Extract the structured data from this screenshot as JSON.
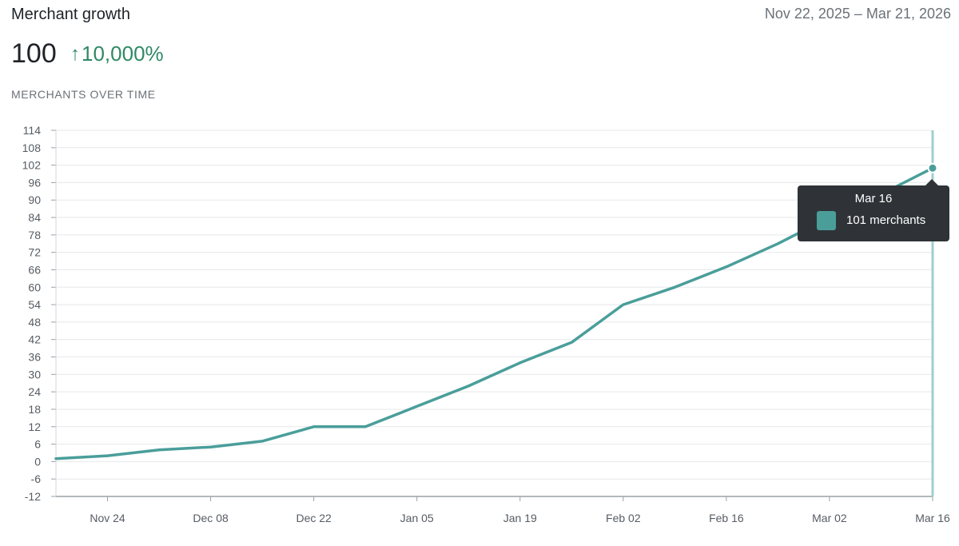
{
  "header": {
    "title": "Merchant growth",
    "date_range": "Nov 22, 2025 – Mar 21, 2026",
    "metric_value": "100",
    "change_arrow": "↑",
    "change_value": "10,000%",
    "chart_subtitle": "MERCHANTS OVER TIME"
  },
  "tooltip": {
    "date": "Mar 16",
    "value_label": "101 merchants",
    "swatch_color": "#4a9e9a"
  },
  "colors": {
    "line": "#4a9e9a",
    "crosshair": "#9fcfcc",
    "grid": "#e6e8ea",
    "positive_change": "#2f8a63"
  },
  "chart_data": {
    "type": "line",
    "title": "MERCHANTS OVER TIME",
    "xlabel": "",
    "ylabel": "",
    "ylim": [
      -12,
      114
    ],
    "yticks": [
      -12,
      -6,
      0,
      6,
      12,
      18,
      24,
      30,
      36,
      42,
      48,
      54,
      60,
      66,
      72,
      78,
      84,
      90,
      96,
      102,
      108,
      114
    ],
    "xlim": [
      "2025-11-17",
      "2026-03-16"
    ],
    "xticks": [
      {
        "date": "2025-11-24",
        "label": "Nov 24"
      },
      {
        "date": "2025-12-08",
        "label": "Dec 08"
      },
      {
        "date": "2025-12-22",
        "label": "Dec 22"
      },
      {
        "date": "2026-01-05",
        "label": "Jan 05"
      },
      {
        "date": "2026-01-19",
        "label": "Jan 19"
      },
      {
        "date": "2026-02-02",
        "label": "Feb 02"
      },
      {
        "date": "2026-02-16",
        "label": "Feb 16"
      },
      {
        "date": "2026-03-02",
        "label": "Mar 02"
      },
      {
        "date": "2026-03-16",
        "label": "Mar 16"
      }
    ],
    "grid": true,
    "series": [
      {
        "values": [
          {
            "x": "2025-11-17",
            "y": 1
          },
          {
            "x": "2025-11-24",
            "y": 2
          },
          {
            "x": "2025-12-01",
            "y": 4
          },
          {
            "x": "2025-12-08",
            "y": 5
          },
          {
            "x": "2025-12-15",
            "y": 7
          },
          {
            "x": "2025-12-22",
            "y": 12
          },
          {
            "x": "2025-12-29",
            "y": 12
          },
          {
            "x": "2026-01-05",
            "y": 19
          },
          {
            "x": "2026-01-12",
            "y": 26
          },
          {
            "x": "2026-01-19",
            "y": 34
          },
          {
            "x": "2026-01-26",
            "y": 41
          },
          {
            "x": "2026-02-02",
            "y": 54
          },
          {
            "x": "2026-02-09",
            "y": 60
          },
          {
            "x": "2026-02-16",
            "y": 67
          },
          {
            "x": "2026-02-23",
            "y": 75
          },
          {
            "x": "2026-03-02",
            "y": 84
          },
          {
            "x": "2026-03-09",
            "y": 92
          },
          {
            "x": "2026-03-16",
            "y": 101
          }
        ]
      }
    ],
    "highlight": {
      "x": "2026-03-16",
      "y": 101
    }
  }
}
